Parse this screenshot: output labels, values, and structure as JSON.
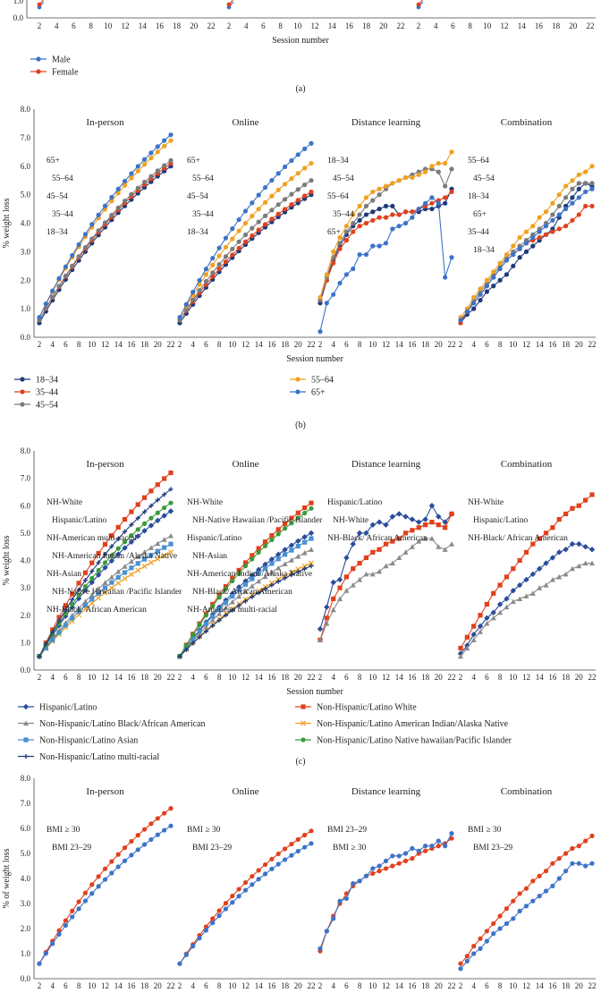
{
  "chart_data": [
    {
      "id": "a",
      "type": "line",
      "caption": "(a)",
      "xlabel": "Session number",
      "ylabel": "",
      "y_ticks": [
        "0.0"
      ],
      "partial_top_tick": "1.0",
      "panel_titles": [
        "",
        "",
        ""
      ],
      "legend": [
        {
          "name": "Male",
          "color": "#3b73c8"
        },
        {
          "name": "Female",
          "color": "#e0401c"
        }
      ],
      "x_ticks": [
        2,
        4,
        6,
        8,
        10,
        12,
        14,
        16,
        18,
        20,
        22
      ]
    },
    {
      "id": "b",
      "type": "line",
      "caption": "(b)",
      "xlabel": "Session number",
      "ylabel": "% weight loss",
      "ylim": [
        0,
        8
      ],
      "y_ticks": [
        "0.0",
        "1.0",
        "2.0",
        "3.0",
        "4.0",
        "5.0",
        "6.0",
        "7.0",
        "8.0"
      ],
      "x_ticks": [
        2,
        4,
        6,
        8,
        10,
        12,
        14,
        16,
        18,
        20,
        22
      ],
      "panel_titles": [
        "In-person",
        "Online",
        "Distance learning",
        "Combination"
      ],
      "series_styles": {
        "18–34": {
          "color": "#1f3a7a",
          "marker": "circle"
        },
        "35–44": {
          "color": "#e0401c",
          "marker": "circle"
        },
        "45–54": {
          "color": "#7a7a7a",
          "marker": "circle"
        },
        "55–64": {
          "color": "#f0a020",
          "marker": "circle"
        },
        "65+": {
          "color": "#3b73c8",
          "marker": "circle"
        }
      },
      "legend": [
        {
          "name": "18–34",
          "color": "#1f3a7a"
        },
        {
          "name": "55–64",
          "color": "#f0a020"
        },
        {
          "name": "35–44",
          "color": "#e0401c"
        },
        {
          "name": "65+",
          "color": "#3b73c8"
        },
        {
          "name": "45–54",
          "color": "#7a7a7a"
        }
      ],
      "panels": [
        {
          "end": {
            "18–34": 6.0,
            "35–44": 6.1,
            "45–54": 6.2,
            "55–64": 6.9,
            "65+": 7.1
          },
          "start": {
            "18–34": 0.5,
            "35–44": 0.6,
            "45–54": 0.6,
            "55–64": 0.7,
            "65+": 0.7
          },
          "annotations": [
            "65+",
            "55–64",
            "45–54",
            "35–44",
            "18–34"
          ]
        },
        {
          "end": {
            "18–34": 5.0,
            "35–44": 5.1,
            "45–54": 5.5,
            "55–64": 6.1,
            "65+": 6.8
          },
          "start": {
            "18–34": 0.5,
            "35–44": 0.6,
            "45–54": 0.6,
            "55–64": 0.7,
            "65+": 0.7
          },
          "annotations": [
            "65+",
            "55–64",
            "45–54",
            "35–44",
            "18–34"
          ]
        },
        {
          "series": {
            "18–34": [
              1.2,
              2.0,
              2.7,
              3.2,
              3.6,
              3.9,
              4.1,
              4.3,
              4.4,
              4.5,
              4.6,
              4.6,
              4.3,
              4.4,
              4.4,
              4.4,
              4.5,
              4.5,
              4.6,
              4.7,
              5.2
            ],
            "35–44": [
              1.3,
              2.0,
              2.6,
              3.1,
              3.4,
              3.7,
              3.9,
              4.0,
              4.1,
              4.2,
              4.2,
              4.3,
              4.3,
              4.4,
              4.4,
              4.5,
              4.6,
              4.7,
              4.8,
              4.9,
              5.1
            ],
            "45–54": [
              1.3,
              2.1,
              2.8,
              3.3,
              3.7,
              4.0,
              4.3,
              4.6,
              4.8,
              5.0,
              5.2,
              5.4,
              5.5,
              5.6,
              5.7,
              5.8,
              5.9,
              5.9,
              5.8,
              5.3,
              5.9
            ],
            "55–64": [
              1.4,
              2.2,
              3.0,
              3.5,
              3.9,
              4.3,
              4.6,
              4.9,
              5.1,
              5.2,
              5.3,
              5.4,
              5.5,
              5.6,
              5.6,
              5.7,
              5.8,
              6.0,
              6.1,
              6.1,
              6.5
            ],
            "65+": [
              0.2,
              1.2,
              1.5,
              1.9,
              2.2,
              2.4,
              2.9,
              2.9,
              3.2,
              3.2,
              3.3,
              3.8,
              3.9,
              4.0,
              4.2,
              4.5,
              4.7,
              4.9,
              4.7,
              2.1,
              2.8
            ]
          },
          "annotations": [
            "18–34",
            "45–54",
            "55–64",
            "35–44",
            "65+"
          ]
        },
        {
          "series": {
            "18–34": [
              0.5,
              0.8,
              1.0,
              1.3,
              1.6,
              1.8,
              2.0,
              2.2,
              2.5,
              2.8,
              3.0,
              3.2,
              3.4,
              3.6,
              3.8,
              4.2,
              4.6,
              4.9,
              5.2,
              5.4,
              5.3
            ],
            "35–44": [
              0.5,
              0.9,
              1.2,
              1.5,
              1.8,
              2.1,
              2.4,
              2.7,
              2.9,
              3.1,
              3.3,
              3.4,
              3.5,
              3.6,
              3.7,
              3.8,
              3.9,
              4.1,
              4.3,
              4.6,
              4.6
            ],
            "45–54": [
              0.6,
              0.9,
              1.3,
              1.6,
              1.9,
              2.2,
              2.5,
              2.8,
              3.0,
              3.2,
              3.4,
              3.6,
              3.8,
              4.0,
              4.3,
              4.6,
              4.9,
              5.2,
              5.4,
              5.4,
              5.4
            ],
            "55–64": [
              0.7,
              1.0,
              1.4,
              1.7,
              2.0,
              2.3,
              2.6,
              2.9,
              3.2,
              3.5,
              3.7,
              3.9,
              4.2,
              4.4,
              4.7,
              5.0,
              5.3,
              5.5,
              5.7,
              5.8,
              6.0
            ],
            "65+": [
              0.6,
              0.9,
              1.2,
              1.5,
              1.8,
              2.1,
              2.4,
              2.7,
              2.9,
              3.1,
              3.3,
              3.5,
              3.7,
              3.9,
              4.1,
              4.3,
              4.5,
              4.7,
              4.9,
              5.1,
              5.2
            ]
          },
          "annotations": [
            "55–64",
            "45–54",
            "18–34",
            "65+",
            "35–44",
            "18–34"
          ]
        }
      ]
    },
    {
      "id": "c",
      "type": "line",
      "caption": "(c)",
      "xlabel": "Session number",
      "ylabel": "% weight loss",
      "ylim": [
        0,
        8
      ],
      "y_ticks": [
        "0.0",
        "1.0",
        "2.0",
        "3.0",
        "4.0",
        "5.0",
        "6.0",
        "7.0",
        "8.0"
      ],
      "x_ticks": [
        2,
        4,
        6,
        8,
        10,
        12,
        14,
        16,
        18,
        20,
        22
      ],
      "panel_titles": [
        "In-person",
        "Online",
        "Distance learning",
        "Combination"
      ],
      "series_styles": {
        "Hispanic/Latino": {
          "color": "#2a4d9b",
          "marker": "diamond"
        },
        "NH-White": {
          "color": "#e0401c",
          "marker": "square"
        },
        "NH-Black": {
          "color": "#8a8a8a",
          "marker": "triangle"
        },
        "NH-AIAN": {
          "color": "#f0a020",
          "marker": "x"
        },
        "NH-Asian": {
          "color": "#4a90d0",
          "marker": "square"
        },
        "NH-NHPI": {
          "color": "#3a9a3a",
          "marker": "circle"
        },
        "NH-Multi": {
          "color": "#1f3a7a",
          "marker": "plus"
        }
      },
      "legend": [
        {
          "name": "Hispanic/Latino",
          "color": "#2a4d9b",
          "marker": "diamond"
        },
        {
          "name": "Non-Hispanic/Latino White",
          "color": "#e0401c",
          "marker": "square"
        },
        {
          "name": "Non-Hispanic/Latino Black/African American",
          "color": "#8a8a8a",
          "marker": "triangle"
        },
        {
          "name": "Non-Hispanic/Latino American Indian/Alaska Native",
          "color": "#f0a020",
          "marker": "x"
        },
        {
          "name": "Non-Hispanic/Latino Asian",
          "color": "#4a90d0",
          "marker": "square"
        },
        {
          "name": "Non-Hispanic/Latino Native hawaiian/Pacific Islander",
          "color": "#3a9a3a",
          "marker": "circle"
        },
        {
          "name": "Non-Hispanic/Latino multi-racial",
          "color": "#1f3a7a",
          "marker": "plus"
        }
      ],
      "panels": [
        {
          "end": {
            "Hispanic/Latino": 5.8,
            "NH-White": 7.2,
            "NH-Black": 4.9,
            "NH-AIAN": 4.3,
            "NH-Asian": 4.6,
            "NH-NHPI": 6.1,
            "NH-Multi": 6.6
          },
          "annotations": [
            "NH-White",
            "Hispanic/Latino",
            "NH-American multi-racial",
            "NH-American Indian /Alaska Native",
            "NH-Asian",
            "NH-Native Hawaiian /Pacific Islander",
            "NH-Black/ African American"
          ]
        },
        {
          "end": {
            "Hispanic/Latino": 5.0,
            "NH-White": 6.1,
            "NH-Black": 4.4,
            "NH-AIAN": 3.9,
            "NH-Asian": 4.8,
            "NH-NHPI": 5.9,
            "NH-Multi": 3.8
          },
          "annotations": [
            "NH-White",
            "NH-Native Hawaiian /Pacific Islander",
            "Hispanic/Latino",
            "NH-Asian",
            "NH-American Indian /Alaska Native",
            "NH-Black/ African American",
            "NH-American multi-racial"
          ]
        },
        {
          "series": {
            "Hispanic/Latino": [
              1.5,
              2.3,
              3.2,
              3.3,
              4.1,
              4.6,
              5.0,
              5.0,
              5.3,
              5.4,
              5.3,
              5.6,
              5.7,
              5.6,
              5.5,
              5.4,
              5.5,
              6.0,
              5.6,
              5.4,
              5.7
            ],
            "NH-White": [
              1.1,
              1.9,
              2.6,
              3.0,
              3.4,
              3.7,
              3.9,
              4.1,
              4.3,
              4.4,
              4.6,
              4.7,
              4.8,
              5.0,
              5.1,
              5.2,
              5.3,
              5.4,
              5.3,
              5.2,
              5.7
            ],
            "NH-Black": [
              1.1,
              1.7,
              2.2,
              2.6,
              2.9,
              3.1,
              3.3,
              3.5,
              3.5,
              3.6,
              3.8,
              3.9,
              4.1,
              4.3,
              4.5,
              4.7,
              4.8,
              4.8,
              4.5,
              4.4,
              4.6
            ]
          },
          "annotations": [
            "Hispanic/Latino",
            "NH-White",
            "NH-Black/ African American"
          ]
        },
        {
          "series": {
            "Hispanic/Latino": [
              0.6,
              0.9,
              1.3,
              1.6,
              1.9,
              2.1,
              2.4,
              2.6,
              2.9,
              3.1,
              3.3,
              3.5,
              3.7,
              3.9,
              4.1,
              4.3,
              4.4,
              4.6,
              4.6,
              4.5,
              4.4
            ],
            "NH-White": [
              0.8,
              1.2,
              1.6,
              2.0,
              2.4,
              2.8,
              3.1,
              3.4,
              3.7,
              4.0,
              4.3,
              4.6,
              4.8,
              5.0,
              5.2,
              5.5,
              5.7,
              5.9,
              6.0,
              6.2,
              6.4
            ],
            "NH-Black": [
              0.5,
              0.8,
              1.1,
              1.4,
              1.7,
              1.9,
              2.1,
              2.3,
              2.5,
              2.6,
              2.7,
              2.8,
              3.0,
              3.1,
              3.3,
              3.4,
              3.5,
              3.7,
              3.8,
              3.9,
              3.9
            ]
          },
          "annotations": [
            "NH-White",
            "Hispanic/Latino",
            "NH-Black/ African American"
          ]
        }
      ]
    },
    {
      "id": "d",
      "type": "line",
      "caption": "",
      "xlabel": "Session number",
      "ylabel": "% of weight loss",
      "ylim": [
        0,
        8
      ],
      "y_ticks": [
        "0.0",
        "1.0",
        "2.0",
        "3.0",
        "4.0",
        "5.0",
        "6.0",
        "7.0",
        "8.0"
      ],
      "x_ticks": [
        2,
        4,
        6,
        8,
        10,
        12,
        14,
        16,
        18,
        20,
        22
      ],
      "panel_titles": [
        "In-person",
        "Online",
        "Distance learning",
        "Combination"
      ],
      "series_styles": {
        "BMI ≥ 30": {
          "color": "#e0401c",
          "marker": "circle"
        },
        "BMI 23–29": {
          "color": "#3b73c8",
          "marker": "circle"
        }
      },
      "panels": [
        {
          "end": {
            "BMI ≥ 30": 6.8,
            "BMI 23–29": 6.1
          },
          "start": 0.6,
          "annotations": [
            "BMI ≥ 30",
            "BMI 23–29"
          ]
        },
        {
          "end": {
            "BMI ≥ 30": 5.9,
            "BMI 23–29": 5.4
          },
          "start": 0.6,
          "annotations": [
            "BMI ≥ 30",
            "BMI 23–29"
          ]
        },
        {
          "series": {
            "BMI ≥ 30": [
              1.1,
              1.9,
              2.5,
              3.0,
              3.4,
              3.7,
              3.9,
              4.1,
              4.2,
              4.3,
              4.4,
              4.5,
              4.6,
              4.7,
              4.8,
              5.0,
              5.1,
              5.2,
              5.3,
              5.4,
              5.6
            ],
            "BMI 23–29": [
              1.2,
              1.9,
              2.4,
              3.1,
              3.2,
              3.8,
              3.9,
              4.1,
              4.4,
              4.5,
              4.7,
              4.9,
              4.9,
              5.0,
              5.2,
              5.1,
              5.3,
              5.3,
              5.5,
              5.3,
              5.8
            ]
          },
          "annotations": [
            "BMI 23–29",
            "BMI ≥ 30"
          ]
        },
        {
          "series": {
            "BMI ≥ 30": [
              0.6,
              0.9,
              1.3,
              1.6,
              1.9,
              2.2,
              2.5,
              2.8,
              3.1,
              3.4,
              3.6,
              3.9,
              4.1,
              4.3,
              4.6,
              4.8,
              5.0,
              5.2,
              5.3,
              5.5,
              5.7
            ],
            "BMI 23–29": [
              0.4,
              0.7,
              1.0,
              1.2,
              1.5,
              1.8,
              2.0,
              2.2,
              2.4,
              2.7,
              2.9,
              3.1,
              3.3,
              3.5,
              3.7,
              4.0,
              4.3,
              4.6,
              4.6,
              4.5,
              4.6
            ]
          },
          "annotations": [
            "BMI ≥ 30",
            "BMI 23–29"
          ]
        }
      ]
    }
  ]
}
